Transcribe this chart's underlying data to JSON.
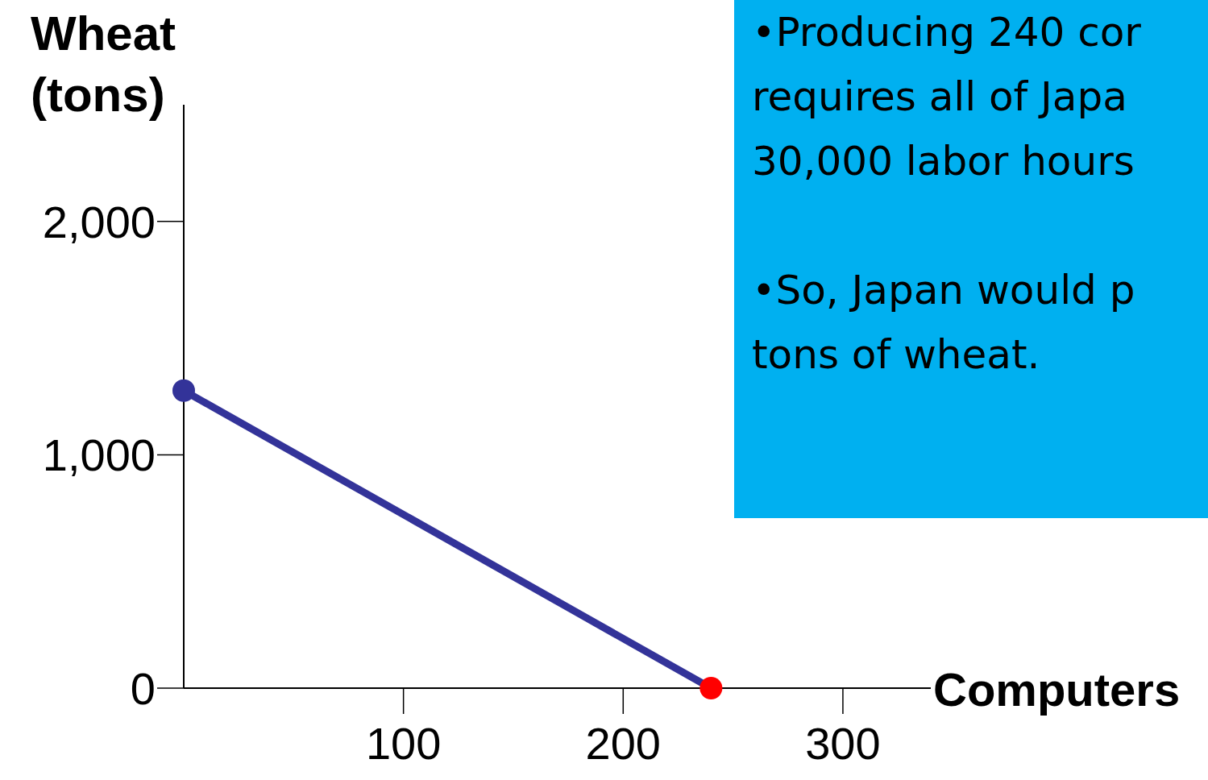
{
  "chart_data": {
    "type": "line",
    "xlabel": "Computers",
    "ylabel": "Wheat (tons)",
    "x": [
      0,
      240
    ],
    "series": [
      {
        "color": "#333399",
        "colors": [
          "#333399",
          "#ff0000"
        ],
        "values": [
          1275,
          0
        ]
      }
    ],
    "xlim": [
      0,
      340
    ],
    "ylim": [
      0,
      2500
    ],
    "xticks": [
      100,
      200,
      300
    ],
    "yticks": [
      {
        "value": 0,
        "label": "0"
      },
      {
        "value": 1000,
        "label": "1,000"
      },
      {
        "value": 2000,
        "label": "2,000"
      }
    ],
    "marker": "circle",
    "line_style": "solid",
    "grid": false,
    "legend": false,
    "annotations": [
      "•Producing 240 cor",
      "requires all of Japa",
      "30,000 labor hours",
      "•So, Japan would p",
      "tons of wheat."
    ]
  }
}
